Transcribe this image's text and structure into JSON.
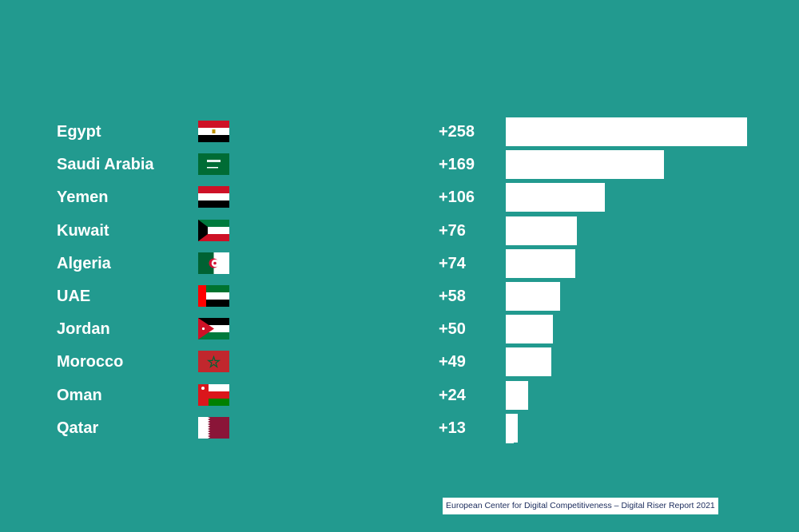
{
  "chart_data": {
    "type": "bar",
    "orientation": "horizontal",
    "categories": [
      "Egypt",
      "Saudi Arabia",
      "Yemen",
      "Kuwait",
      "Algeria",
      "UAE",
      "Jordan",
      "Morocco",
      "Oman",
      "Qatar"
    ],
    "values": [
      258,
      169,
      106,
      76,
      74,
      58,
      50,
      49,
      24,
      13
    ],
    "value_labels": [
      "+258",
      "+169",
      "+106",
      "+76",
      "+74",
      "+58",
      "+50",
      "+49",
      "+24",
      "+13"
    ],
    "flags": [
      "egypt-flag-icon",
      "saudi-arabia-flag-icon",
      "yemen-flag-icon",
      "kuwait-flag-icon",
      "algeria-flag-icon",
      "uae-flag-icon",
      "jordan-flag-icon",
      "morocco-flag-icon",
      "oman-flag-icon",
      "qatar-flag-icon"
    ],
    "xlim": [
      0,
      258
    ],
    "grid": false,
    "legend": "none",
    "colors": {
      "background": "#229a8f",
      "bar": "#ffffff",
      "text": "#ffffff"
    }
  },
  "source": "European Center for Digital Competitiveness – Digital Riser Report 2021"
}
